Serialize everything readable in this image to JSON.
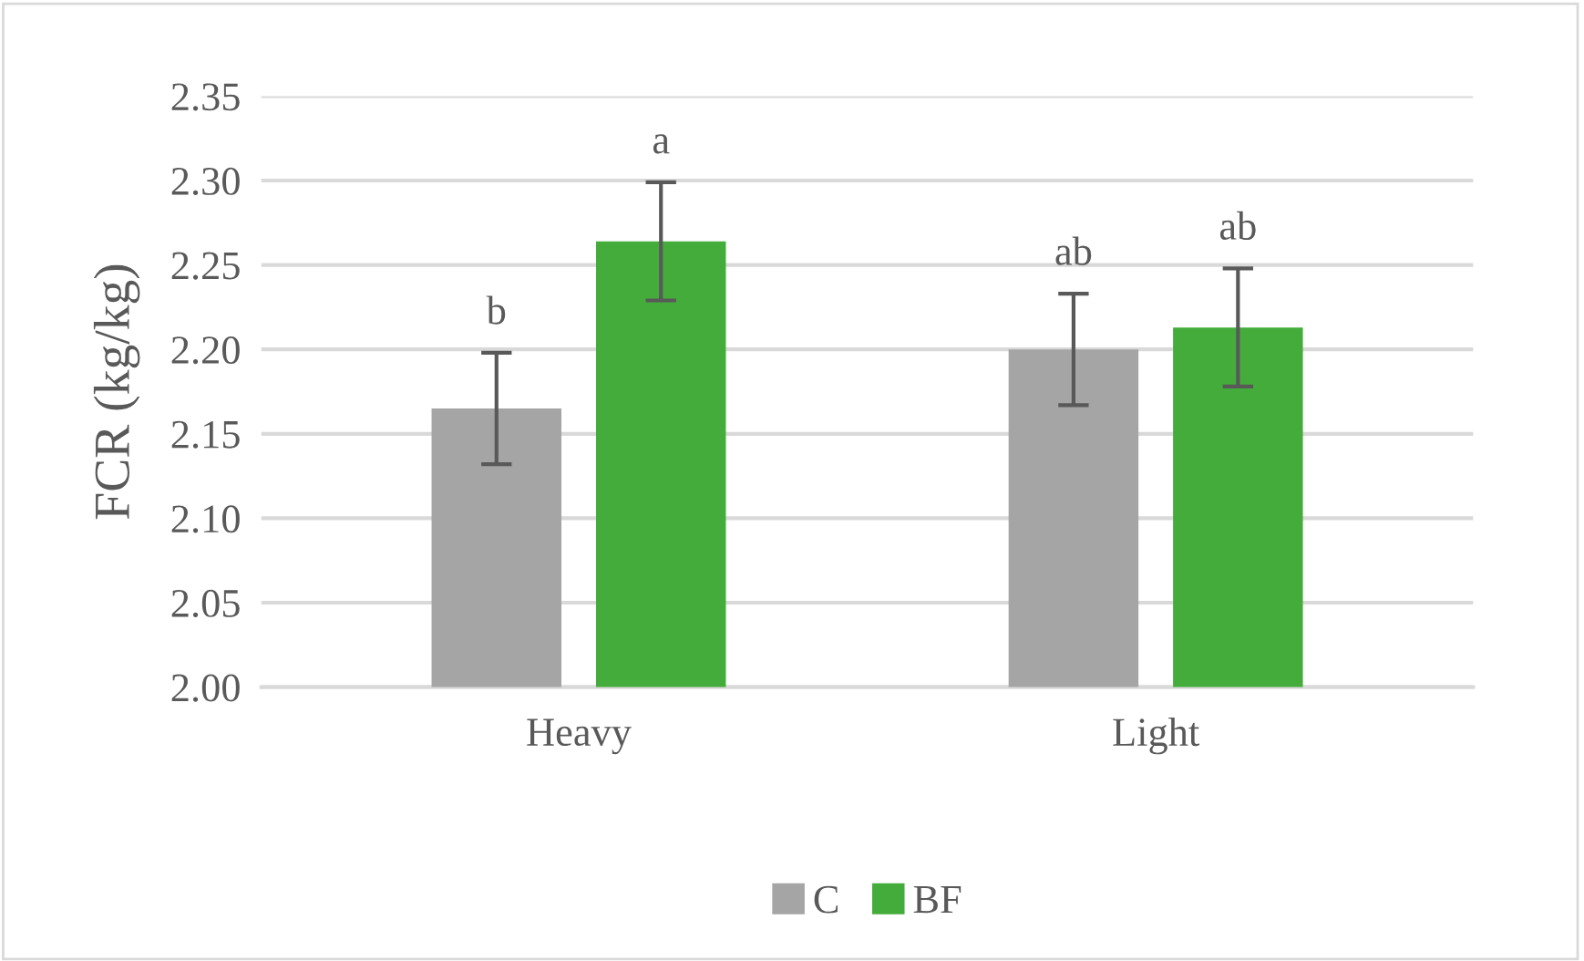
{
  "chart_data": {
    "type": "bar",
    "ylabel": "FCR (kg/kg)",
    "categories": [
      "Heavy",
      "Light"
    ],
    "series": [
      {
        "name": "C",
        "color": "#a5a5a5",
        "values": [
          2.165,
          2.2
        ],
        "errors": [
          0.033,
          0.033
        ]
      },
      {
        "name": "BF",
        "color": "#43ac3a",
        "values": [
          2.264,
          2.213
        ],
        "errors": [
          0.035,
          0.035
        ]
      }
    ],
    "annotations": [
      "b",
      "a",
      "ab",
      "ab"
    ],
    "ylim": [
      2.0,
      2.35
    ],
    "yticks": [
      {
        "value": 2.0,
        "label": "2.00"
      },
      2.05,
      {
        "value": 2.1,
        "label": "2.10"
      },
      2.15,
      {
        "value": 2.2,
        "label": "2.20"
      },
      2.25,
      {
        "value": 2.3,
        "label": "2.30"
      },
      2.35
    ],
    "grid": "y",
    "legend": "bottom"
  }
}
